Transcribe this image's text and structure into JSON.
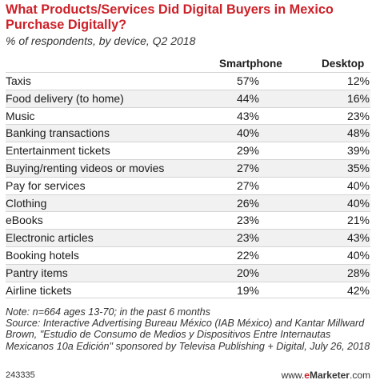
{
  "chart_data": {
    "type": "table",
    "title": "What Products/Services Did Digital Buyers in Mexico Purchase Digitally?",
    "subtitle": "% of respondents, by device, Q2 2018",
    "columns": [
      "Smartphone",
      "Desktop"
    ],
    "rows": [
      {
        "label": "Taxis",
        "values": [
          "57%",
          "12%"
        ]
      },
      {
        "label": "Food delivery (to home)",
        "values": [
          "44%",
          "16%"
        ]
      },
      {
        "label": "Music",
        "values": [
          "43%",
          "23%"
        ]
      },
      {
        "label": "Banking transactions",
        "values": [
          "40%",
          "48%"
        ]
      },
      {
        "label": "Entertainment tickets",
        "values": [
          "29%",
          "39%"
        ]
      },
      {
        "label": "Buying/renting videos or movies",
        "values": [
          "27%",
          "35%"
        ]
      },
      {
        "label": "Pay for services",
        "values": [
          "27%",
          "40%"
        ]
      },
      {
        "label": "Clothing",
        "values": [
          "26%",
          "40%"
        ]
      },
      {
        "label": "eBooks",
        "values": [
          "23%",
          "21%"
        ]
      },
      {
        "label": "Electronic articles",
        "values": [
          "23%",
          "43%"
        ]
      },
      {
        "label": "Booking hotels",
        "values": [
          "22%",
          "40%"
        ]
      },
      {
        "label": "Pantry items",
        "values": [
          "20%",
          "28%"
        ]
      },
      {
        "label": "Airline tickets",
        "values": [
          "19%",
          "42%"
        ]
      }
    ]
  },
  "notes": {
    "note": "Note: n=664 ages 13-70; in the past 6 months",
    "source": "Source: Interactive Advertising Bureau México (IAB México) and Kantar Millward Brown, \"Estudio de Consumo de Medios y Dispositivos Entre Internautas Mexicanos 10a Edición\" sponsored by Televisa Publishing + Digital, July 26, 2018"
  },
  "footer": {
    "id": "243335",
    "brand_prefix": "www.",
    "brand_e": "e",
    "brand_name": "Marketer",
    "brand_suffix": ".com"
  },
  "colors": {
    "title": "#cc2028",
    "row_alt": "#f1f1f1",
    "rule": "#d4d4d4"
  }
}
